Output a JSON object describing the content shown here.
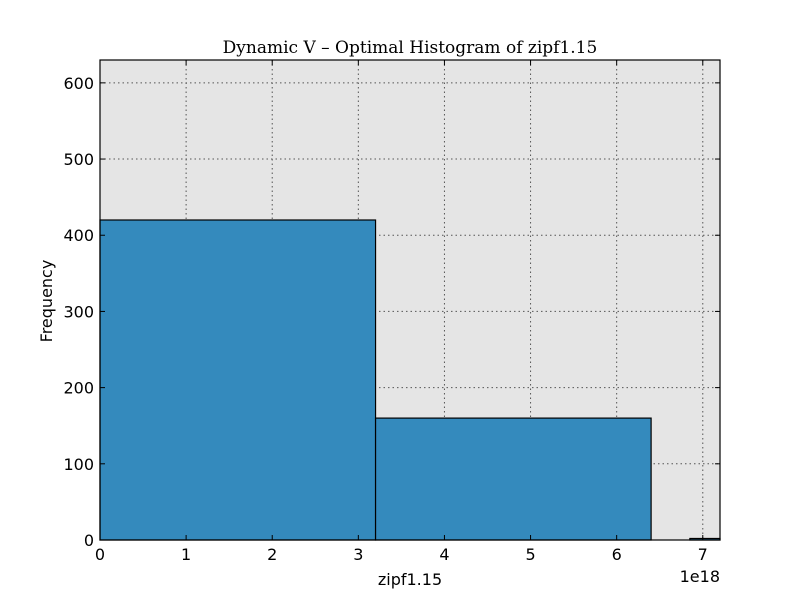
{
  "chart_data": {
    "type": "bar",
    "title": "Dynamic V – Optimal Histogram of zipf1.15",
    "xlabel": "zipf1.15",
    "ylabel": "Frequency",
    "x_offset_label": "1e18",
    "xlim": [
      0,
      7.2
    ],
    "ylim": [
      0,
      630
    ],
    "x_ticks": [
      0,
      1,
      2,
      3,
      4,
      5,
      6,
      7
    ],
    "y_ticks": [
      0,
      100,
      200,
      300,
      400,
      500,
      600
    ],
    "grid": true,
    "bins": [
      {
        "x0": 0.0,
        "x1": 3.2,
        "value": 420
      },
      {
        "x0": 3.2,
        "x1": 6.4,
        "value": 160
      },
      {
        "x0": 6.85,
        "x1": 7.2,
        "value": 2
      }
    ],
    "colors": {
      "bar": "#348abd",
      "plot_background": "#e5e5e5",
      "edge": "#000000"
    }
  }
}
